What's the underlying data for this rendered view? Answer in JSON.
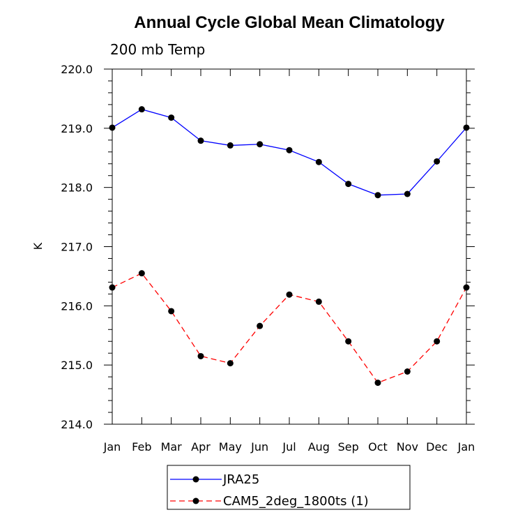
{
  "chart_data": {
    "type": "line",
    "title": "Annual Cycle Global Mean Climatology",
    "subtitle": "200 mb Temp",
    "xlabel": "",
    "ylabel": "K",
    "categories": [
      "Jan",
      "Feb",
      "Mar",
      "Apr",
      "May",
      "Jun",
      "Jul",
      "Aug",
      "Sep",
      "Oct",
      "Nov",
      "Dec",
      "Jan"
    ],
    "ylim": [
      214.0,
      220.0
    ],
    "yticks": [
      "214.0",
      "215.0",
      "216.0",
      "217.0",
      "218.0",
      "219.0",
      "220.0"
    ],
    "grid": false,
    "legend_position": "bottom",
    "series": [
      {
        "name": "JRA25",
        "color": "#0000ff",
        "style": "solid",
        "values": [
          219.01,
          219.32,
          219.18,
          218.79,
          218.71,
          218.73,
          218.63,
          218.43,
          218.06,
          217.87,
          217.89,
          218.44,
          219.01
        ]
      },
      {
        "name": "CAM5_2deg_1800ts (1)",
        "color": "#ff0000",
        "style": "dashed",
        "values": [
          216.31,
          216.55,
          215.91,
          215.15,
          215.03,
          215.66,
          216.19,
          216.07,
          215.4,
          214.7,
          214.89,
          215.4,
          216.31
        ]
      }
    ]
  }
}
